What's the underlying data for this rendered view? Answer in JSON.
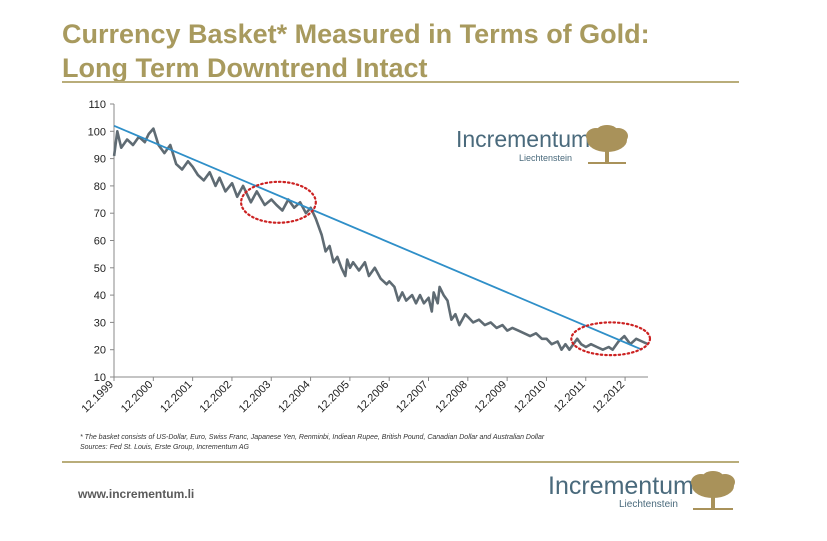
{
  "header": {
    "title": "Currency Basket* Measured in Terms of Gold:",
    "subtitle": "Long Term Downtrend Intact"
  },
  "footnote": {
    "line1": "* The basket consists of US-Dollar, Euro, Swiss Franc, Japanese Yen, Renminbi, Indiean Rupee, British Pound, Canadian Dollar and Australian Dollar",
    "line2": "Sources: Fed St. Louis, Erste Group, Incrementum AG"
  },
  "footer": {
    "url": "www.incrementum.li"
  },
  "logo": {
    "name": "Incrementum",
    "sub": "Liechtenstein"
  },
  "colors": {
    "accent": "#a89a5e",
    "series": "#5f6b73",
    "trendline": "#2f8fc8",
    "highlight": "#cc2222",
    "logo_text": "#4a6a7c",
    "logo_tree": "#a9925a"
  },
  "icons": [
    "tree-icon"
  ],
  "chart_data": {
    "type": "line",
    "title": "",
    "xlabel": "",
    "ylabel": "",
    "ylim": [
      10,
      110
    ],
    "yticks": [
      10,
      20,
      30,
      40,
      50,
      60,
      70,
      80,
      90,
      100,
      110
    ],
    "xlim": [
      1999.917,
      2013.5
    ],
    "xticks": [
      "12.1999",
      "12.2000",
      "12.2001",
      "12.2002",
      "12.2003",
      "12.2004",
      "12.2005",
      "12.2006",
      "12.2007",
      "12.2008",
      "12.2009",
      "12.2010",
      "12.2011",
      "12.2012"
    ],
    "grid": false,
    "legend": "none",
    "series": [
      {
        "values": [
          [
            1999.92,
            91
          ],
          [
            2000.0,
            100
          ],
          [
            2000.1,
            94
          ],
          [
            2000.25,
            97
          ],
          [
            2000.4,
            95
          ],
          [
            2000.55,
            98
          ],
          [
            2000.7,
            96
          ],
          [
            2000.8,
            99
          ],
          [
            2000.92,
            101
          ],
          [
            2001.05,
            95
          ],
          [
            2001.2,
            92
          ],
          [
            2001.35,
            95
          ],
          [
            2001.5,
            88
          ],
          [
            2001.65,
            86
          ],
          [
            2001.8,
            89
          ],
          [
            2001.92,
            87
          ],
          [
            2002.05,
            84
          ],
          [
            2002.2,
            82
          ],
          [
            2002.35,
            85
          ],
          [
            2002.5,
            80
          ],
          [
            2002.6,
            83
          ],
          [
            2002.75,
            78
          ],
          [
            2002.92,
            81
          ],
          [
            2003.05,
            76
          ],
          [
            2003.2,
            80
          ],
          [
            2003.4,
            74
          ],
          [
            2003.55,
            78
          ],
          [
            2003.75,
            73
          ],
          [
            2003.92,
            75
          ],
          [
            2004.05,
            73
          ],
          [
            2004.2,
            71
          ],
          [
            2004.35,
            75
          ],
          [
            2004.5,
            72
          ],
          [
            2004.65,
            74
          ],
          [
            2004.8,
            70
          ],
          [
            2004.92,
            72
          ],
          [
            2005.05,
            68
          ],
          [
            2005.2,
            62
          ],
          [
            2005.3,
            56
          ],
          [
            2005.4,
            58
          ],
          [
            2005.5,
            52
          ],
          [
            2005.6,
            54
          ],
          [
            2005.7,
            50
          ],
          [
            2005.8,
            47
          ],
          [
            2005.85,
            53
          ],
          [
            2005.92,
            50
          ],
          [
            2006.0,
            52
          ],
          [
            2006.15,
            49
          ],
          [
            2006.3,
            52
          ],
          [
            2006.4,
            47
          ],
          [
            2006.55,
            50
          ],
          [
            2006.7,
            46
          ],
          [
            2006.85,
            44
          ],
          [
            2006.92,
            45
          ],
          [
            2007.05,
            43
          ],
          [
            2007.15,
            38
          ],
          [
            2007.25,
            41
          ],
          [
            2007.35,
            38
          ],
          [
            2007.5,
            40
          ],
          [
            2007.6,
            37
          ],
          [
            2007.7,
            40
          ],
          [
            2007.8,
            37
          ],
          [
            2007.92,
            39
          ],
          [
            2008.0,
            34
          ],
          [
            2008.05,
            41
          ],
          [
            2008.15,
            37
          ],
          [
            2008.2,
            43
          ],
          [
            2008.3,
            40
          ],
          [
            2008.4,
            38
          ],
          [
            2008.5,
            31
          ],
          [
            2008.6,
            33
          ],
          [
            2008.7,
            29
          ],
          [
            2008.85,
            33
          ],
          [
            2008.92,
            32
          ],
          [
            2009.05,
            30
          ],
          [
            2009.2,
            31
          ],
          [
            2009.35,
            29
          ],
          [
            2009.5,
            30
          ],
          [
            2009.65,
            28
          ],
          [
            2009.8,
            29
          ],
          [
            2009.92,
            27
          ],
          [
            2010.05,
            28
          ],
          [
            2010.2,
            27
          ],
          [
            2010.35,
            26
          ],
          [
            2010.5,
            25
          ],
          [
            2010.65,
            26
          ],
          [
            2010.8,
            24
          ],
          [
            2010.92,
            24
          ],
          [
            2011.05,
            22
          ],
          [
            2011.2,
            23
          ],
          [
            2011.3,
            20
          ],
          [
            2011.4,
            22
          ],
          [
            2011.5,
            20
          ],
          [
            2011.6,
            22
          ],
          [
            2011.7,
            24
          ],
          [
            2011.8,
            22
          ],
          [
            2011.92,
            21
          ],
          [
            2012.05,
            22
          ],
          [
            2012.2,
            21
          ],
          [
            2012.35,
            20
          ],
          [
            2012.5,
            21
          ],
          [
            2012.6,
            20
          ],
          [
            2012.75,
            23
          ],
          [
            2012.9,
            25
          ],
          [
            2013.05,
            22
          ],
          [
            2013.2,
            24
          ],
          [
            2013.35,
            23
          ],
          [
            2013.5,
            22
          ]
        ]
      },
      {
        "values": [
          [
            1999.92,
            102
          ],
          [
            2013.35,
            20
          ]
        ]
      }
    ],
    "annotations": [
      {
        "type": "ellipse",
        "cx": 2004.1,
        "cy": 74,
        "rx": 0.95,
        "ry": 7.5
      },
      {
        "type": "ellipse",
        "cx": 2012.55,
        "cy": 24,
        "rx": 1.0,
        "ry": 6.0
      }
    ]
  }
}
